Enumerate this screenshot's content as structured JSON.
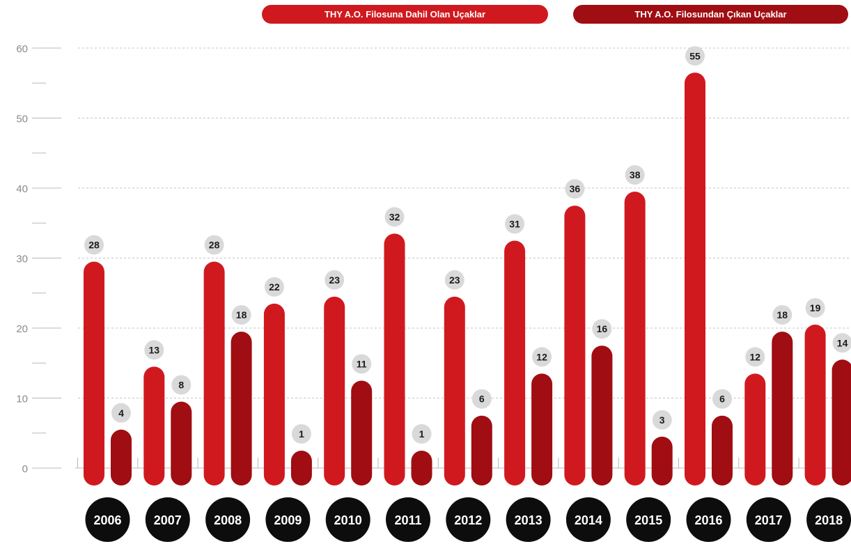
{
  "chart_data": {
    "type": "bar",
    "categories": [
      "2006",
      "2007",
      "2008",
      "2009",
      "2010",
      "2011",
      "2012",
      "2013",
      "2014",
      "2015",
      "2016",
      "2017",
      "2018"
    ],
    "series": [
      {
        "name": "THY A.O. Filosuna Dahil Olan Uçaklar",
        "values": [
          28,
          13,
          28,
          22,
          23,
          32,
          23,
          31,
          36,
          38,
          55,
          12,
          19
        ],
        "color": "#d0191f"
      },
      {
        "name": "THY A.O. Filosundan Çıkan Uçaklar",
        "values": [
          4,
          8,
          18,
          1,
          11,
          1,
          6,
          12,
          16,
          3,
          6,
          18,
          14
        ],
        "color": "#a00d12"
      }
    ],
    "ylim": [
      0,
      60
    ],
    "yticks": [
      0,
      10,
      20,
      30,
      40,
      50,
      60
    ],
    "grid": true,
    "legend_position": "top",
    "xlabel": "",
    "ylabel": ""
  }
}
